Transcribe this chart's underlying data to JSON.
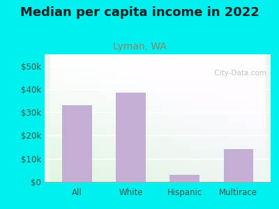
{
  "title": "Median per capita income in 2022",
  "subtitle": "Lyman, WA",
  "categories": [
    "All",
    "White",
    "Hispanic",
    "Multirace"
  ],
  "values": [
    33000,
    38500,
    3000,
    14000
  ],
  "bar_color": "#c4aed4",
  "background_outer": "#00EFEF",
  "background_plot_top": "#d8f0f0",
  "background_plot_left": "#d0eedc",
  "background_plot_right": "#eefff0",
  "title_fontsize": 13,
  "subtitle_fontsize": 10,
  "title_color": "#222222",
  "subtitle_color": "#888866",
  "tick_label_color": "#445544",
  "yticks": [
    0,
    10000,
    20000,
    30000,
    40000,
    50000
  ],
  "ytick_labels": [
    "$0",
    "$10k",
    "$20k",
    "$30k",
    "$40k",
    "$50k"
  ],
  "ylim": [
    0,
    55000
  ],
  "watermark": " City-Data.com"
}
